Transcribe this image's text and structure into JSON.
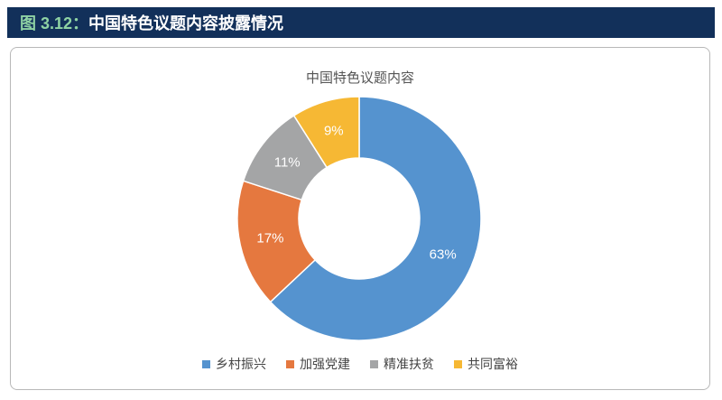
{
  "header": {
    "figure_label": "图 3.12：",
    "title": "中国特色议题内容披露情况"
  },
  "chart_data": {
    "type": "pie",
    "title": "中国特色议题内容",
    "donut": true,
    "categories": [
      "乡村振兴",
      "加强党建",
      "精准扶贫",
      "共同富裕"
    ],
    "values": [
      63,
      17,
      11,
      9
    ],
    "value_labels": [
      "63%",
      "17%",
      "11%",
      "9%"
    ],
    "colors": [
      "#5593cf",
      "#e5783f",
      "#a4a5a6",
      "#f6b834"
    ],
    "legend_position": "bottom"
  }
}
